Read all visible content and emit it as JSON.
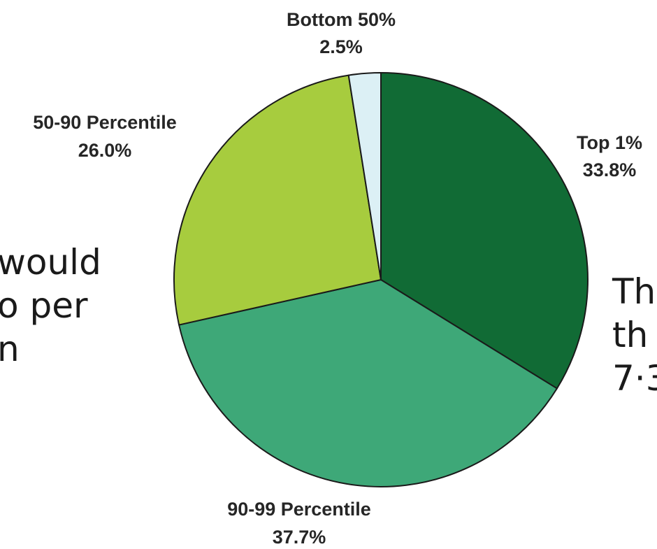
{
  "chart_data": {
    "type": "pie",
    "slices": [
      {
        "label": "Top 1%",
        "value": 33.8,
        "value_label": "33.8%",
        "color": "#116b35"
      },
      {
        "label": "90-99 Percentile",
        "value": 37.7,
        "value_label": "37.7%",
        "color": "#3ea878"
      },
      {
        "label": "50-90 Percentile",
        "value": 26.0,
        "value_label": "26.0%",
        "color": "#a7cc3e"
      },
      {
        "label": "Bottom 50%",
        "value": 2.5,
        "value_label": "2.5%",
        "color": "#dcf0f5"
      }
    ]
  },
  "left_text": [
    "would",
    "o per",
    "n"
  ],
  "right_text": [
    "Th",
    "th",
    "7·3"
  ]
}
